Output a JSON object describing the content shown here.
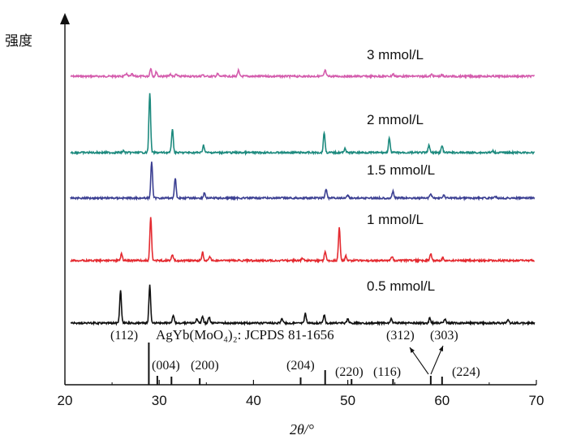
{
  "chart_data": {
    "type": "line",
    "xlabel": "2θ/°",
    "ylabel": "强度",
    "xlim": [
      20,
      70
    ],
    "x_ticks": [
      20,
      30,
      40,
      50,
      60,
      70
    ],
    "grid": false,
    "legend": "none",
    "series": [
      {
        "name": "3 mmol/L",
        "color": "#d45cad",
        "peaks": [
          [
            26.5,
            0.18
          ],
          [
            27.1,
            0.14
          ],
          [
            29.1,
            0.55
          ],
          [
            29.7,
            0.3
          ],
          [
            31.2,
            0.14
          ],
          [
            31.8,
            0.12
          ],
          [
            34.6,
            0.1
          ],
          [
            36.2,
            0.16
          ],
          [
            38.4,
            0.38
          ],
          [
            47.6,
            0.4
          ],
          [
            54.8,
            0.16
          ],
          [
            58.9,
            0.12
          ],
          [
            60.0,
            0.08
          ]
        ]
      },
      {
        "name": "2 mmol/L",
        "color": "#1d8a7e",
        "peaks": [
          [
            26.2,
            0.12
          ],
          [
            29.0,
            4.0
          ],
          [
            31.4,
            1.6
          ],
          [
            34.7,
            0.5
          ],
          [
            47.5,
            1.35
          ],
          [
            49.7,
            0.3
          ],
          [
            54.4,
            0.95
          ],
          [
            58.6,
            0.5
          ],
          [
            60.0,
            0.45
          ],
          [
            65.4,
            0.1
          ]
        ]
      },
      {
        "name": "1.5 mmol/L",
        "color": "#3b3f92",
        "peaks": [
          [
            29.2,
            2.45
          ],
          [
            31.7,
            1.35
          ],
          [
            34.8,
            0.35
          ],
          [
            47.7,
            0.6
          ],
          [
            50.0,
            0.2
          ],
          [
            54.8,
            0.45
          ],
          [
            58.8,
            0.3
          ],
          [
            60.2,
            0.22
          ],
          [
            65.7,
            0.1
          ]
        ]
      },
      {
        "name": "1 mmol/L",
        "color": "#e42a30",
        "peaks": [
          [
            26.0,
            0.45
          ],
          [
            29.1,
            2.95
          ],
          [
            31.4,
            0.4
          ],
          [
            34.6,
            0.55
          ],
          [
            35.4,
            0.25
          ],
          [
            45.2,
            0.2
          ],
          [
            47.6,
            0.6
          ],
          [
            49.1,
            2.2
          ],
          [
            49.8,
            0.3
          ],
          [
            54.7,
            0.3
          ],
          [
            58.8,
            0.45
          ],
          [
            60.1,
            0.2
          ]
        ]
      },
      {
        "name": "0.5 mmol/L",
        "color": "#111111",
        "peaks": [
          [
            25.9,
            2.2
          ],
          [
            29.0,
            2.5
          ],
          [
            31.5,
            0.55
          ],
          [
            34.0,
            0.3
          ],
          [
            34.6,
            0.45
          ],
          [
            35.3,
            0.4
          ],
          [
            43.0,
            0.3
          ],
          [
            45.5,
            0.65
          ],
          [
            47.5,
            0.55
          ],
          [
            50.0,
            0.28
          ],
          [
            54.6,
            0.3
          ],
          [
            58.7,
            0.35
          ],
          [
            60.3,
            0.25
          ],
          [
            67.0,
            0.2
          ]
        ]
      }
    ],
    "reference": {
      "name": "AgYb(MoO₄)₂:  JCPDS 81-1656",
      "lines": [
        [
          28.9,
          1.0
        ],
        [
          29.8,
          0.18
        ],
        [
          31.3,
          0.16
        ],
        [
          34.3,
          0.12
        ],
        [
          45.0,
          0.14
        ],
        [
          47.6,
          0.32
        ],
        [
          50.4,
          0.1
        ],
        [
          54.8,
          0.1
        ],
        [
          58.8,
          0.18
        ],
        [
          60.0,
          0.16
        ]
      ],
      "hkl_labels": [
        "(112)",
        "(004)",
        "(200)",
        "(204)",
        "(220)",
        "(116)",
        "(312)",
        "(303)",
        "(224)"
      ]
    }
  }
}
